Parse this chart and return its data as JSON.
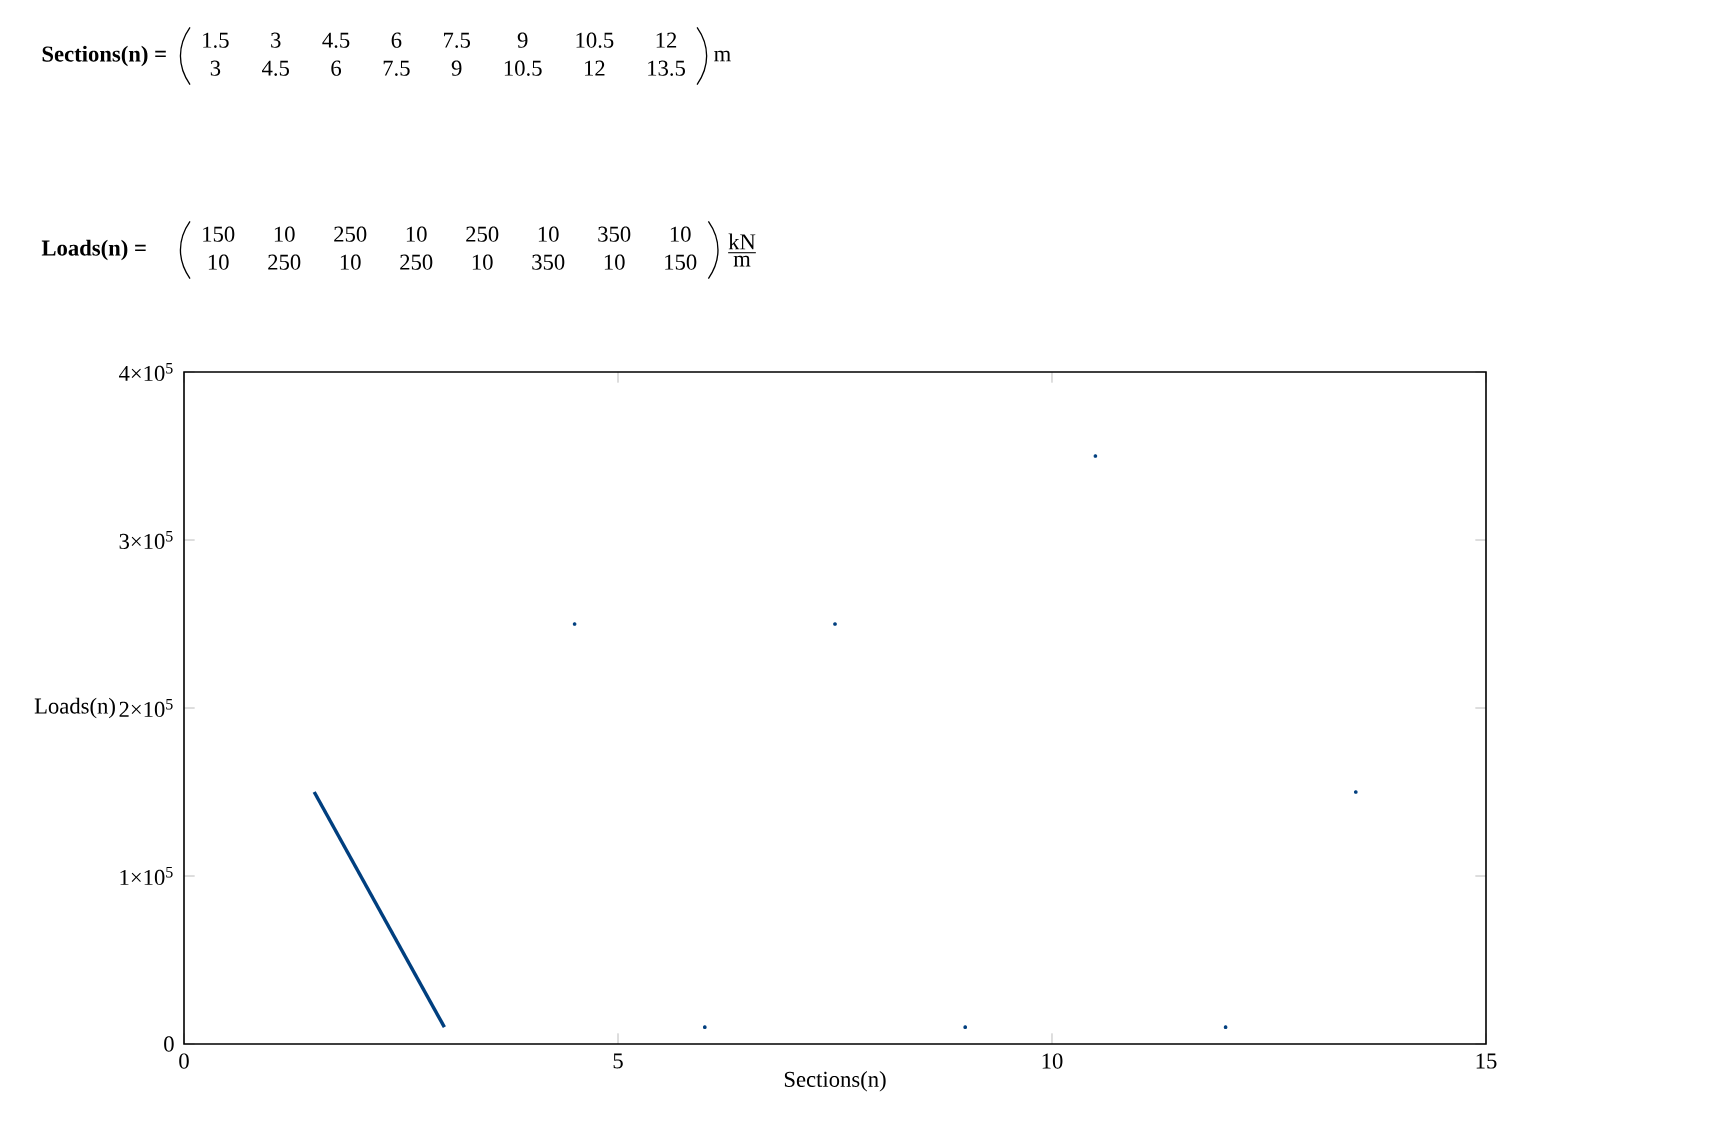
{
  "chart_data": {
    "type": "line",
    "xlabel": "Sections(n)",
    "ylabel": "Loads(n)",
    "annotations": [
      "Sections(n) =",
      "1.5",
      "3",
      "4.5",
      "6",
      "7.5",
      "9",
      "10.5",
      "12",
      "3",
      "4.5",
      "6",
      "7.5",
      "9",
      "10.5",
      "12",
      "13.5",
      "m",
      "Loads(n) =",
      "150",
      "10",
      "250",
      "10",
      "250",
      "10",
      "350",
      "10",
      "10",
      "250",
      "10",
      "250",
      "10",
      "350",
      "10",
      "150",
      "kN",
      "m"
    ],
    "xlim": [
      0,
      15
    ],
    "ylim": [
      0,
      400000
    ],
    "xticks": [
      0,
      5,
      10,
      15
    ],
    "yticks": [
      0,
      {
        "value": 100000,
        "label": "1×10$^{5}$"
      },
      {
        "value": 200000,
        "label": "2×10$^{5}$"
      },
      {
        "value": 300000,
        "label": "3×10$^{5}$"
      },
      {
        "value": 400000,
        "label": "4×10$^{5}$"
      }
    ],
    "grid": false,
    "series": [
      {
        "color": "#003f7f",
        "marker": "none",
        "x": [
          1.5,
          3
        ],
        "values": [
          150000,
          10000
        ]
      },
      {
        "type": "scatter",
        "color": "#003f7f",
        "marker": "circle",
        "x": [
          4.5,
          6,
          7.5,
          9,
          10.5,
          12,
          13.5
        ],
        "values": [
          250000,
          10000,
          250000,
          10000,
          350000,
          10000,
          150000
        ]
      }
    ]
  }
}
